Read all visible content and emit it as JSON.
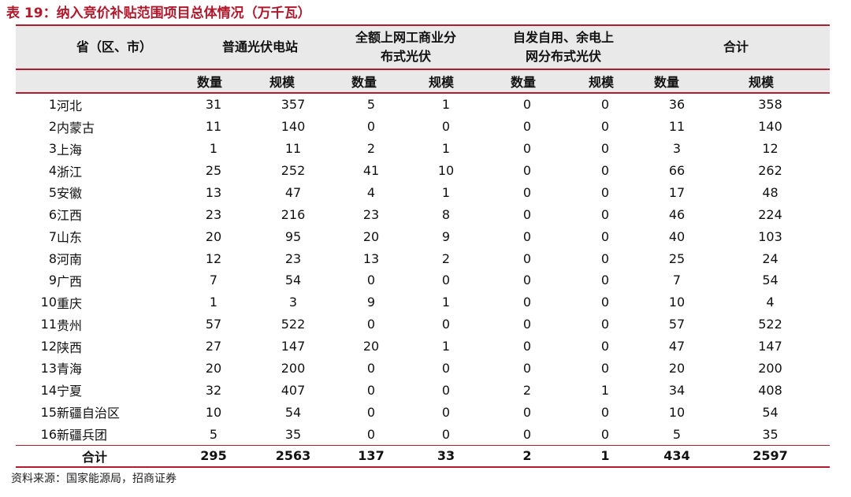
{
  "title": "表 19：纳入竞价补贴范围项目总体情况（万千瓦）",
  "header": {
    "province": "省（区、市）",
    "group1": "普通光伏电站",
    "group2_line1": "全额上网工商业分",
    "group2_line2": "布式光伏",
    "group3_line1": "自发自用、余电上",
    "group3_line2": "网分布式光伏",
    "group4": "合计",
    "count": "数量",
    "scale": "规模"
  },
  "rows": [
    {
      "no": "1",
      "name": "河北",
      "c1": "31",
      "s1": "357",
      "c2": "5",
      "s2": "1",
      "c3": "0",
      "s3": "0",
      "ct": "36",
      "st": "358"
    },
    {
      "no": "2",
      "name": "内蒙古",
      "c1": "11",
      "s1": "140",
      "c2": "0",
      "s2": "0",
      "c3": "0",
      "s3": "0",
      "ct": "11",
      "st": "140"
    },
    {
      "no": "3",
      "name": "上海",
      "c1": "1",
      "s1": "11",
      "c2": "2",
      "s2": "1",
      "c3": "0",
      "s3": "0",
      "ct": "3",
      "st": "12"
    },
    {
      "no": "4",
      "name": "浙江",
      "c1": "25",
      "s1": "252",
      "c2": "41",
      "s2": "10",
      "c3": "0",
      "s3": "0",
      "ct": "66",
      "st": "262"
    },
    {
      "no": "5",
      "name": "安徽",
      "c1": "13",
      "s1": "47",
      "c2": "4",
      "s2": "1",
      "c3": "0",
      "s3": "0",
      "ct": "17",
      "st": "48"
    },
    {
      "no": "6",
      "name": "江西",
      "c1": "23",
      "s1": "216",
      "c2": "23",
      "s2": "8",
      "c3": "0",
      "s3": "0",
      "ct": "46",
      "st": "224"
    },
    {
      "no": "7",
      "name": "山东",
      "c1": "20",
      "s1": "95",
      "c2": "20",
      "s2": "9",
      "c3": "0",
      "s3": "0",
      "ct": "40",
      "st": "103"
    },
    {
      "no": "8",
      "name": "河南",
      "c1": "12",
      "s1": "23",
      "c2": "13",
      "s2": "2",
      "c3": "0",
      "s3": "0",
      "ct": "25",
      "st": "24"
    },
    {
      "no": "9",
      "name": "广西",
      "c1": "7",
      "s1": "54",
      "c2": "0",
      "s2": "0",
      "c3": "0",
      "s3": "0",
      "ct": "7",
      "st": "54"
    },
    {
      "no": "10",
      "name": "重庆",
      "c1": "1",
      "s1": "3",
      "c2": "9",
      "s2": "1",
      "c3": "0",
      "s3": "0",
      "ct": "10",
      "st": "4"
    },
    {
      "no": "11",
      "name": "贵州",
      "c1": "57",
      "s1": "522",
      "c2": "0",
      "s2": "0",
      "c3": "0",
      "s3": "0",
      "ct": "57",
      "st": "522"
    },
    {
      "no": "12",
      "name": "陕西",
      "c1": "27",
      "s1": "147",
      "c2": "20",
      "s2": "1",
      "c3": "0",
      "s3": "0",
      "ct": "47",
      "st": "147"
    },
    {
      "no": "13",
      "name": "青海",
      "c1": "20",
      "s1": "200",
      "c2": "0",
      "s2": "0",
      "c3": "0",
      "s3": "0",
      "ct": "20",
      "st": "200"
    },
    {
      "no": "14",
      "name": "宁夏",
      "c1": "32",
      "s1": "407",
      "c2": "0",
      "s2": "0",
      "c3": "2",
      "s3": "1",
      "ct": "34",
      "st": "408"
    },
    {
      "no": "15",
      "name": "新疆自治区",
      "c1": "10",
      "s1": "54",
      "c2": "0",
      "s2": "0",
      "c3": "0",
      "s3": "0",
      "ct": "10",
      "st": "54"
    },
    {
      "no": "16",
      "name": "新疆兵团",
      "c1": "5",
      "s1": "35",
      "c2": "0",
      "s2": "0",
      "c3": "0",
      "s3": "0",
      "ct": "5",
      "st": "35"
    }
  ],
  "total": {
    "label": "合计",
    "c1": "295",
    "s1": "2563",
    "c2": "137",
    "s2": "33",
    "c3": "2",
    "s3": "1",
    "ct": "434",
    "st": "2597"
  },
  "source": "资料来源：国家能源局，招商证券"
}
